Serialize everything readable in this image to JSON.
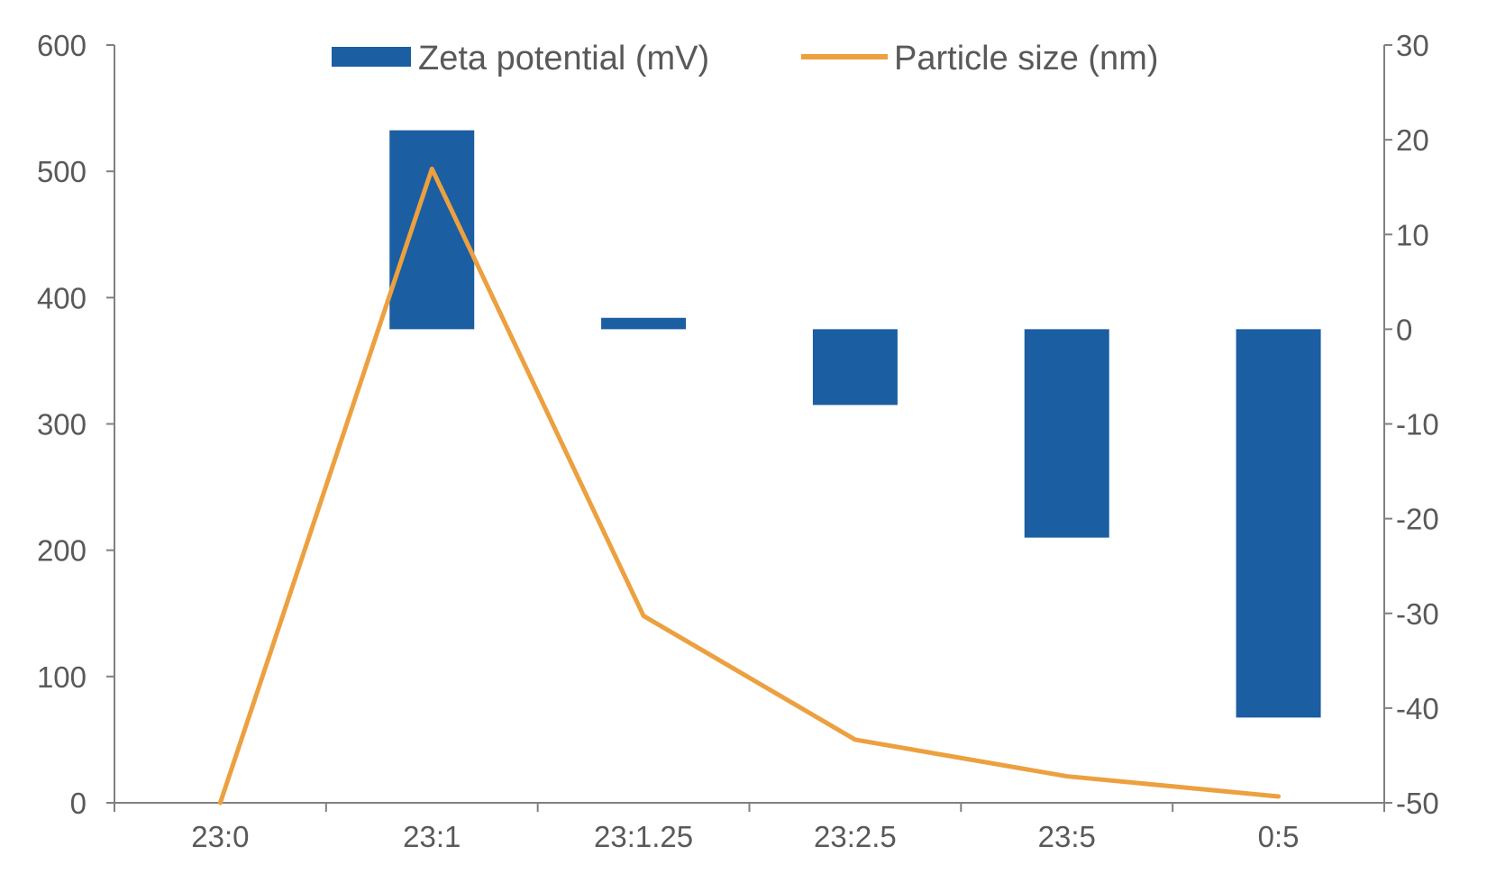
{
  "chart_data": {
    "type": "bar+line",
    "categories": [
      "23:0",
      "23:1",
      "23:1.25",
      "23:2.5",
      "23:5",
      "0:5"
    ],
    "series": [
      {
        "name": "Zeta potential (mV)",
        "type": "bar",
        "axis": "right",
        "values": [
          0,
          21,
          1.2,
          -8,
          -22,
          -41
        ],
        "color": "#1b5ea1"
      },
      {
        "name": "Particle size (nm)",
        "type": "line",
        "axis": "left",
        "values": [
          0,
          502,
          148,
          50,
          21,
          5
        ],
        "color": "#eca03f"
      }
    ],
    "left_axis": {
      "ylim": [
        0,
        600
      ],
      "ticks": [
        0,
        100,
        200,
        300,
        400,
        500,
        600
      ],
      "tick_labels": [
        "0",
        "100",
        "200",
        "300",
        "400",
        "500",
        "600"
      ]
    },
    "right_axis": {
      "ylim": [
        -50,
        30
      ],
      "ticks": [
        -50,
        -40,
        -30,
        -20,
        -10,
        0,
        10,
        20,
        30
      ],
      "tick_labels": [
        "-50",
        "-40",
        "-30",
        "-20",
        "-10",
        "0",
        "10",
        "20",
        "30"
      ]
    },
    "legend": {
      "position": "top",
      "entries": [
        "Zeta potential (mV)",
        "Particle size (nm)"
      ]
    },
    "grid": false,
    "title": "",
    "xlabel": "",
    "ylabel": ""
  }
}
